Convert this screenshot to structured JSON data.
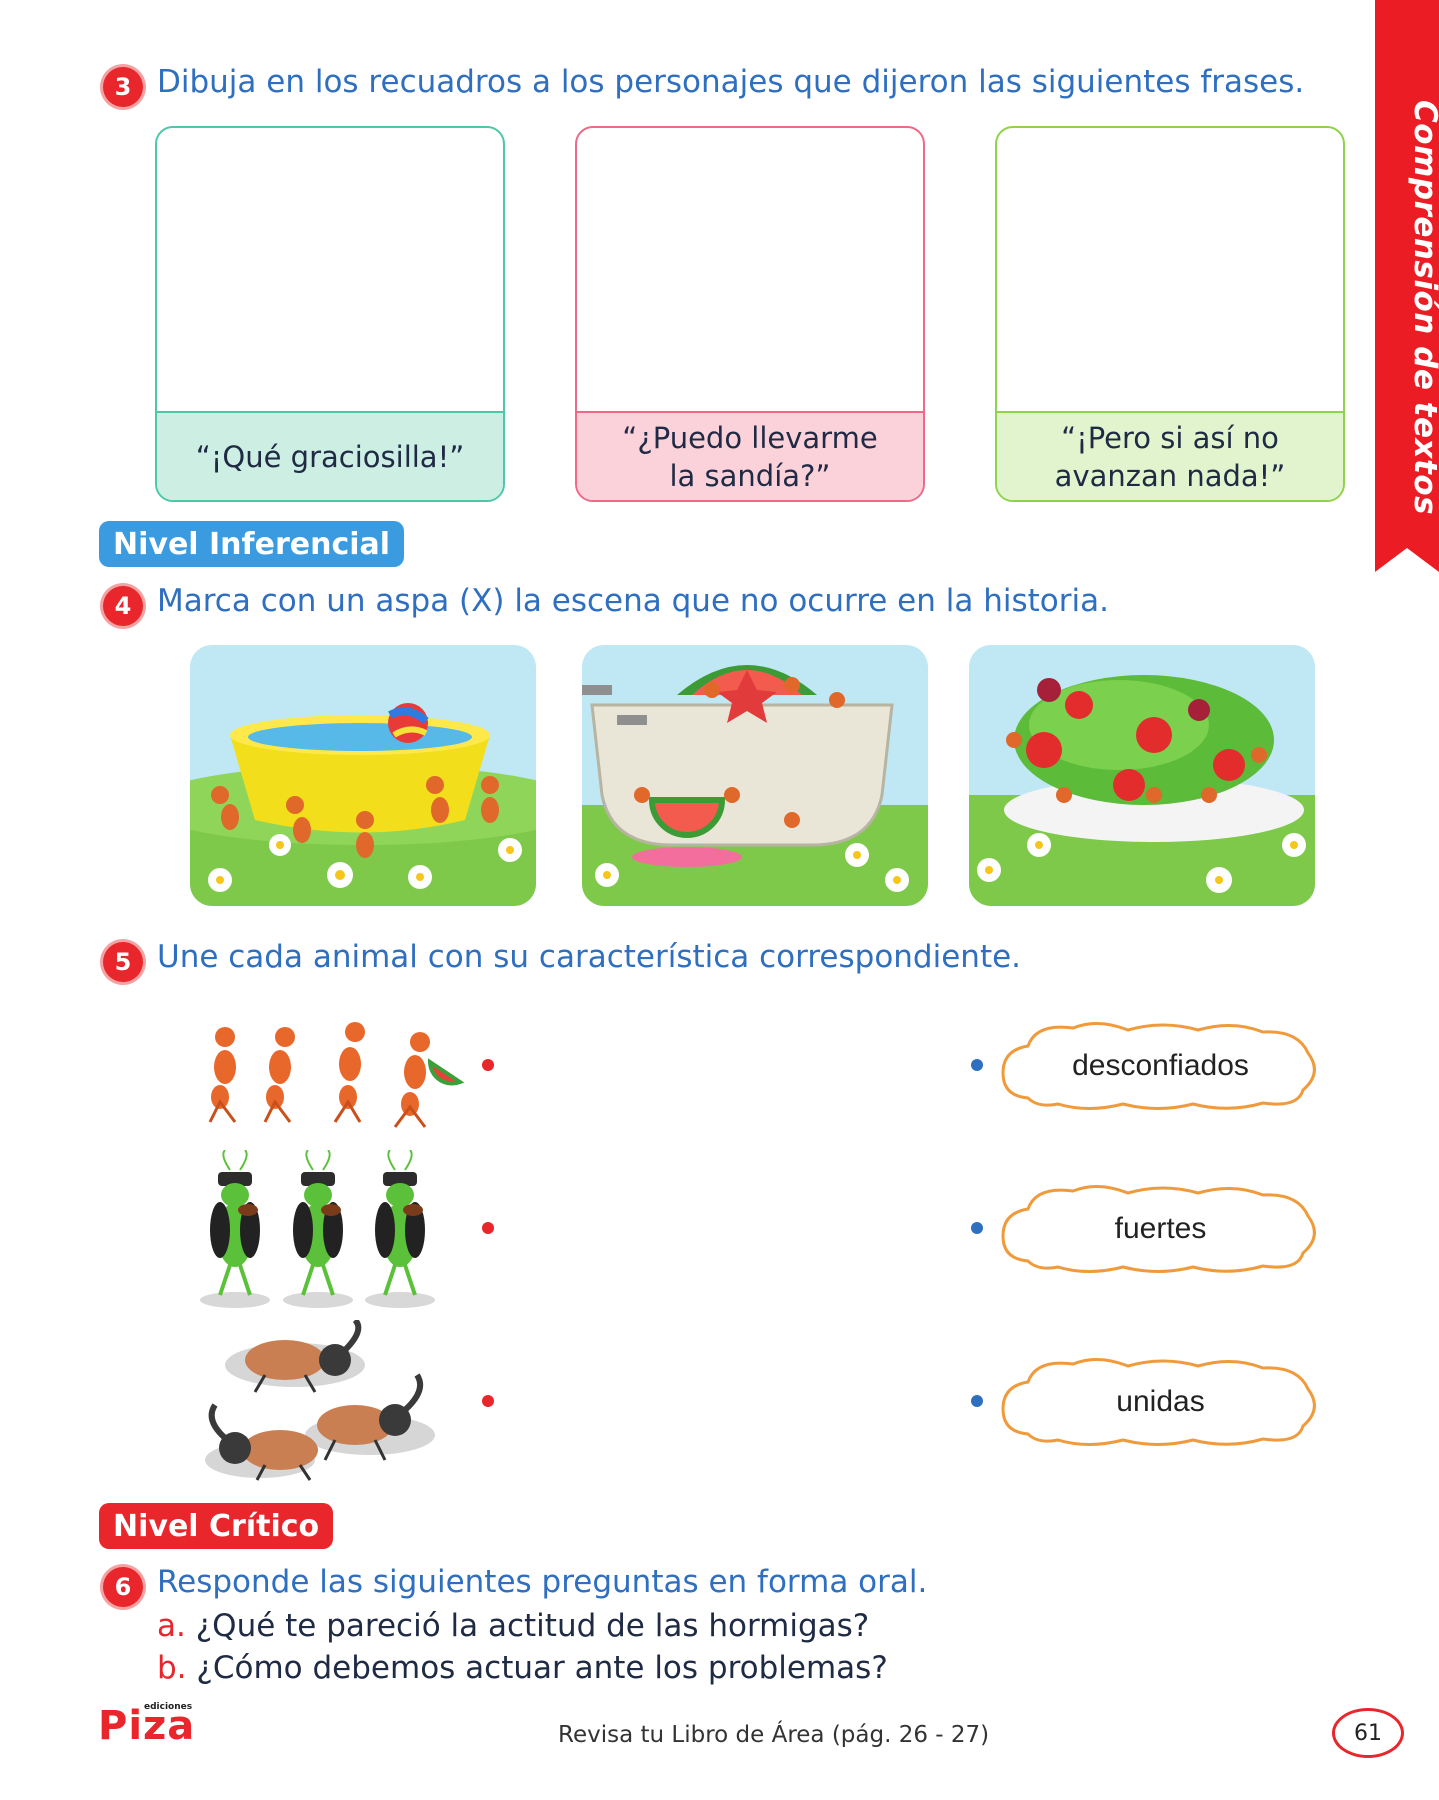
{
  "side_tab": {
    "label": "Comprensión de textos",
    "color": "#ec1c24"
  },
  "q3": {
    "number": "3",
    "instruction": "Dibuja en los recuadros a los personajes que dijeron las siguientes frases.",
    "boxes": [
      {
        "caption": "“¡Qué graciosilla!”",
        "border": "#4dc7a8",
        "fill": "#cdeee3"
      },
      {
        "caption": "“¿Puedo llevarme\nla sandía?”",
        "border": "#ef6a86",
        "fill": "#fbd1da"
      },
      {
        "caption": "“¡Pero si así no\navanzan nada!”",
        "border": "#8ed34b",
        "fill": "#e1f4cd"
      }
    ]
  },
  "level_inferential": {
    "label": "Nivel Inferencial",
    "color": "#3a9be0"
  },
  "q4": {
    "number": "4",
    "instruction": "Marca con un aspa (X) la escena que no ocurre en la historia.",
    "scenes": [
      "scene-pool",
      "scene-bathtub-watermelon",
      "scene-salad"
    ]
  },
  "q5": {
    "number": "5",
    "instruction": "Une cada animal con su característica correspondiente.",
    "animals": [
      "ants-group-icon",
      "crickets-violin-icon",
      "beetles-icon"
    ],
    "characteristics": [
      "desconfiados",
      "fuertes",
      "unidas"
    ]
  },
  "level_critical": {
    "label": "Nivel Crítico",
    "color": "#e8262b"
  },
  "q6": {
    "number": "6",
    "instruction": "Responde las siguientes preguntas en forma oral.",
    "questions": [
      {
        "letter": "a.",
        "text": "¿Qué te pareció la actitud de las hormigas?"
      },
      {
        "letter": "b.",
        "text": "¿Cómo debemos actuar ante los problemas?"
      }
    ]
  },
  "footer": {
    "brand": "Piza",
    "brand_small": "ediciones",
    "reference": "Revisa tu Libro de Área (pág. 26 - 27)",
    "page_number": "61"
  }
}
